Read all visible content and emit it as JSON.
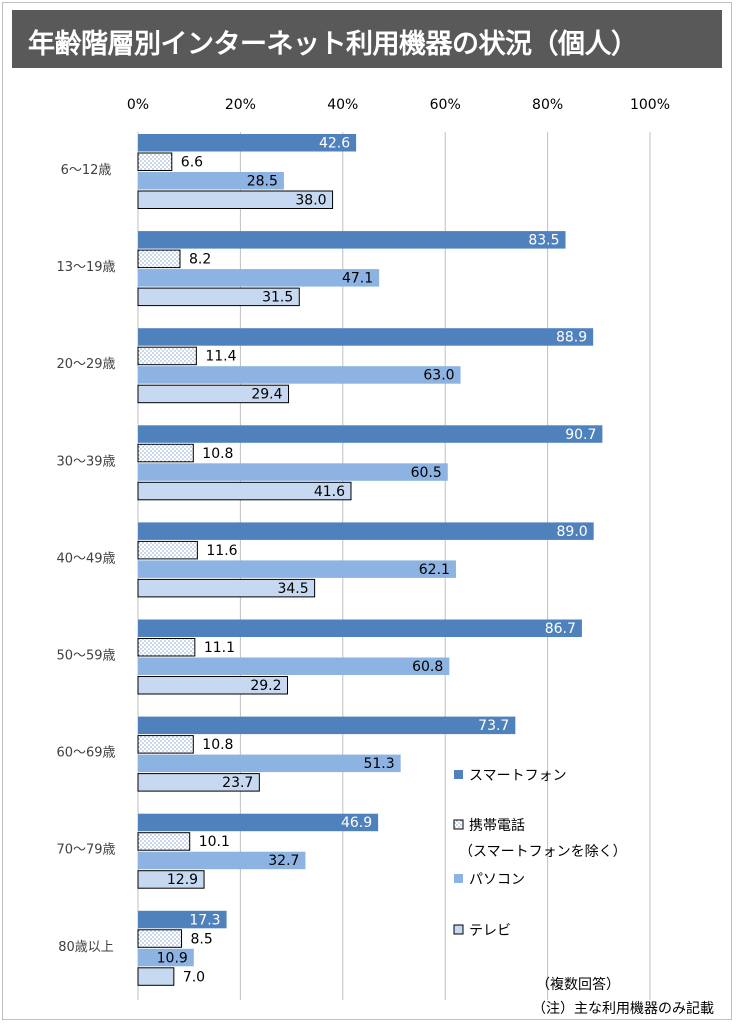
{
  "title": "年齢階層別インターネット利用機器の状況（個人）",
  "notes": {
    "multiple_answer": "（複数回答）",
    "footnote": "（注）主な利用機器のみ記載"
  },
  "colors": {
    "smartphone": "#4f81bd",
    "feature_phone": "#ffffff",
    "pc": "#8db3e2",
    "tv": "#c6d9f1",
    "gridline": "#bfbfbf",
    "title_bg": "#595959"
  },
  "chart_data": {
    "type": "bar",
    "orientation": "horizontal",
    "title": "年齢階層別インターネット利用機器の状況（個人）",
    "xlim": [
      0,
      100
    ],
    "x_ticks": [
      "0%",
      "20%",
      "40%",
      "60%",
      "80%",
      "100%"
    ],
    "grid": true,
    "legend_position": "right",
    "categories": [
      "6～12歳",
      "13～19歳",
      "20～29歳",
      "30～39歳",
      "40～49歳",
      "50～59歳",
      "60～69歳",
      "70～79歳",
      "80歳以上"
    ],
    "series": [
      {
        "name": "スマートフォン",
        "color": "#4f81bd",
        "fill": "solid",
        "values": [
          42.6,
          83.5,
          88.9,
          90.7,
          89.0,
          86.7,
          73.7,
          46.9,
          17.3
        ],
        "labels": [
          "42.6",
          "83.5",
          "88.9",
          "90.7",
          "89.0",
          "86.7",
          "73.7",
          "46.9",
          "17.3"
        ]
      },
      {
        "name": "携帯電話",
        "name_line2": "（スマートフォンを除く）",
        "color": "#ffffff",
        "fill": "dotted",
        "values": [
          6.6,
          8.2,
          11.4,
          10.8,
          11.6,
          11.1,
          10.8,
          10.1,
          8.5
        ],
        "labels": [
          "6.6",
          "8.2",
          "11.4",
          "10.8",
          "11.6",
          "11.1",
          "10.8",
          "10.1",
          "8.5"
        ]
      },
      {
        "name": "パソコン",
        "color": "#8db3e2",
        "fill": "solid",
        "values": [
          28.5,
          47.1,
          63.0,
          60.5,
          62.1,
          60.8,
          51.3,
          32.7,
          10.9
        ],
        "labels": [
          "28.5",
          "47.1",
          "63.0",
          "60.5",
          "62.1",
          "60.8",
          "51.3",
          "32.7",
          "10.9"
        ]
      },
      {
        "name": "テレビ",
        "color": "#c6d9f1",
        "fill": "solid",
        "values": [
          38.0,
          31.5,
          29.4,
          41.6,
          34.5,
          29.2,
          23.7,
          12.9,
          7.0
        ],
        "labels": [
          "38.0",
          "31.5",
          "29.4",
          "41.6",
          "34.5",
          "29.2",
          "23.7",
          "12.9",
          "7.0"
        ]
      }
    ]
  }
}
